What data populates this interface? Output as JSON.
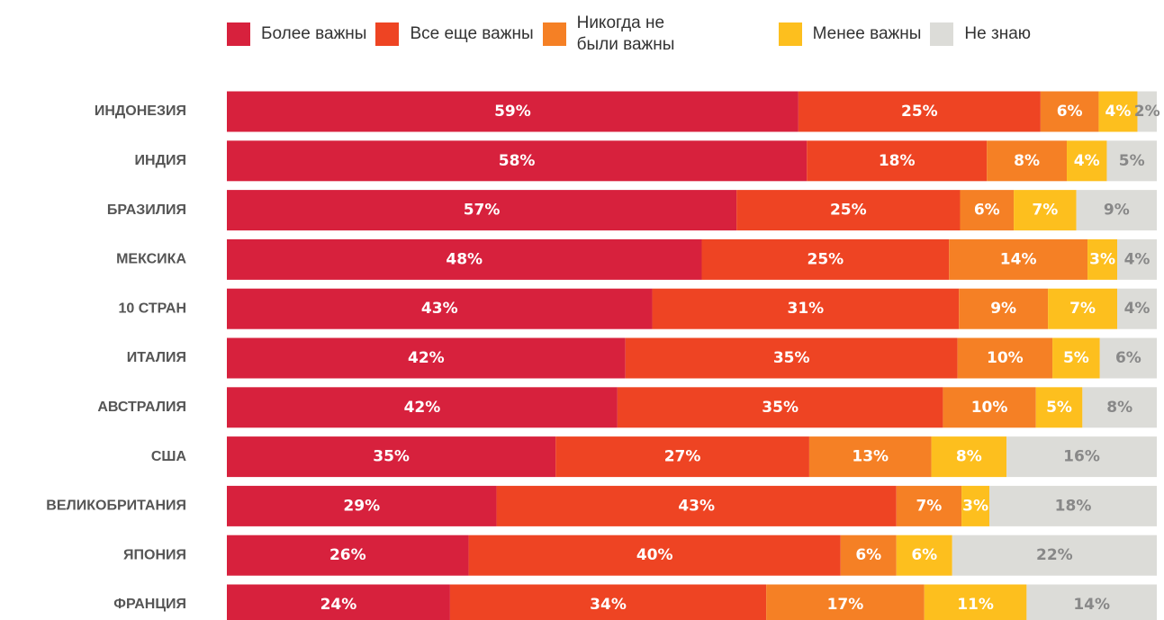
{
  "chart_data": {
    "type": "stacked-bar",
    "categories": [
      "ИНДОНЕЗИЯ",
      "ИНДИЯ",
      "БРАЗИЛИЯ",
      "МЕКСИКА",
      "10 СТРАН",
      "ИТАЛИЯ",
      "АВСТРАЛИЯ",
      "США",
      "ВЕЛИКОБРИТАНИЯ",
      "ЯПОНИЯ",
      "ФРАНЦИЯ"
    ],
    "series": [
      {
        "name": "Более важны",
        "color": "#d7213d",
        "values": [
          59,
          58,
          57,
          48,
          43,
          42,
          42,
          35,
          29,
          26,
          24
        ],
        "value_labels": [
          "59%",
          "58%",
          "57%",
          "48%",
          "43%",
          "42%",
          "42%",
          "35%",
          "29%",
          "26%",
          "24%"
        ]
      },
      {
        "name": "Все еще важны",
        "color": "#ee4423",
        "values": [
          25,
          18,
          25,
          25,
          31,
          35,
          35,
          27,
          43,
          40,
          34
        ],
        "value_labels": [
          "25%",
          "18%",
          "25%",
          "25%",
          "31%",
          "35%",
          "35%",
          "27%",
          "43%",
          "40%",
          "34%"
        ]
      },
      {
        "name": "Никогда не были важны",
        "color": "#f58025",
        "values": [
          6,
          8,
          6,
          14,
          9,
          10,
          10,
          13,
          7,
          6,
          17
        ],
        "value_labels": [
          "6%",
          "8%",
          "6%",
          "14%",
          "9%",
          "10%",
          "10%",
          "13%",
          "7%",
          "6%",
          "17%"
        ]
      },
      {
        "name": "Менее важны",
        "color": "#fdbf1e",
        "values": [
          4,
          4,
          7,
          3,
          7,
          5,
          5,
          8,
          3,
          6,
          11
        ],
        "value_labels": [
          "4%",
          "4%",
          "7%",
          "3%",
          "7%",
          "5%",
          "5%",
          "8%",
          "3%",
          "6%",
          "11%"
        ]
      },
      {
        "name": "Не знаю",
        "color": "#dcdcd8",
        "values": [
          2,
          5,
          9,
          4,
          4,
          6,
          8,
          16,
          18,
          22,
          14
        ],
        "value_labels": [
          "2%",
          "5%",
          "9%",
          "4%",
          "4%",
          "6%",
          "8%",
          "16%",
          "18%",
          "22%",
          "14%"
        ]
      }
    ]
  }
}
